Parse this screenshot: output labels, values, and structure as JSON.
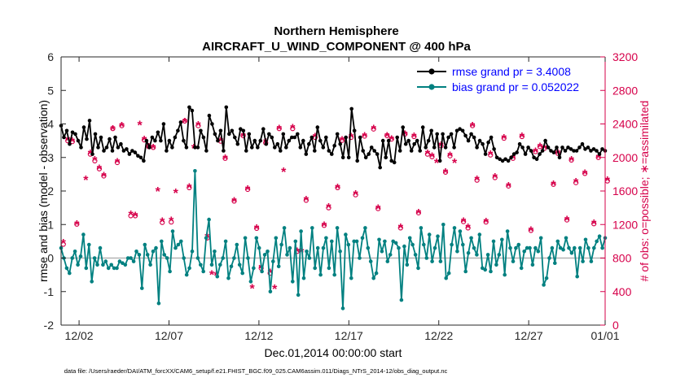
{
  "chart_data": {
    "type": "line",
    "title": "Northern Hemisphere",
    "subtitle": "AIRCRAFT_U_WIND_COMPONENT @ 400 hPa",
    "xlabel": "Dec.01,2014 00:00:00 start",
    "ylabel": "rmse and bias (model - observation)",
    "y2label": "# of obs: o=possible; ∗=assimilated",
    "footer": "data file: /Users/raeder/DAI/ATM_forcXX/CAM6_setup/f.e21.FHIST_BGC.f09_025.CAM6assim.011/Diags_NTrS_2014-12/obs_diag_output.nc",
    "xlim": [
      0,
      121
    ],
    "ylim": [
      -2,
      6
    ],
    "y2lim": [
      0,
      3200
    ],
    "x_ticks": [
      {
        "x": 4,
        "label": "12/02"
      },
      {
        "x": 24,
        "label": "12/07"
      },
      {
        "x": 44,
        "label": "12/12"
      },
      {
        "x": 64,
        "label": "12/17"
      },
      {
        "x": 84,
        "label": "12/22"
      },
      {
        "x": 104,
        "label": "12/27"
      },
      {
        "x": 124,
        "label": "01/01"
      }
    ],
    "y_ticks": [
      "-2",
      "-1",
      "0",
      "1",
      "2",
      "3",
      "4",
      "5",
      "6"
    ],
    "y2_ticks": [
      "0",
      "400",
      "800",
      "1200",
      "1600",
      "2000",
      "2400",
      "2800",
      "3200"
    ],
    "legend": {
      "position": "top-right",
      "entries": [
        "rmse grand pr = 3.4008",
        "bias grand pr = 0.052022"
      ]
    },
    "colors": {
      "rmse": "#000000",
      "bias": "#008080",
      "obs": "#d6004a",
      "zero_line": "#b4b4b4",
      "axis_right": "#d6004a"
    },
    "series": [
      {
        "name": "rmse",
        "axis": "left",
        "values": [
          3.95,
          3.6,
          3.8,
          3.4,
          3.75,
          3.7,
          3.5,
          3.3,
          3.9,
          3.55,
          4.1,
          3.1,
          3.7,
          3.3,
          3.6,
          3.2,
          3.3,
          3.55,
          3.2,
          3.6,
          3.3,
          3.4,
          3.2,
          3.25,
          3.1,
          3.2,
          3.15,
          3.05,
          3.0,
          2.9,
          3.5,
          3.3,
          3.6,
          3.5,
          3.75,
          3.5,
          4.0,
          3.2,
          3.5,
          3.3,
          3.6,
          3.8,
          4.05,
          3.5,
          3.3,
          4.5,
          4.4,
          3.3,
          3.3,
          3.8,
          3.6,
          3.2,
          4.25,
          4.0,
          3.7,
          3.5,
          3.8,
          3.2,
          4.5,
          3.7,
          3.8,
          3.6,
          3.4,
          3.85,
          3.8,
          3.2,
          3.7,
          3.3,
          3.5,
          3.3,
          3.5,
          3.85,
          3.4,
          3.7,
          3.6,
          3.3,
          3.4,
          3.2,
          3.7,
          3.3,
          3.5,
          3.6,
          3.6,
          3.7,
          3.3,
          3.5,
          3.1,
          3.4,
          3.6,
          3.2,
          3.9,
          3.5,
          3.3,
          3.6,
          3.2,
          3.1,
          3.35,
          3.7,
          3.4,
          3.0,
          3.6,
          3.0,
          4.45,
          3.8,
          2.9,
          3.6,
          3.2,
          3.0,
          3.1,
          3.3,
          3.2,
          3.1,
          2.7,
          3.5,
          3.0,
          3.5,
          2.9,
          2.85,
          3.6,
          3.2,
          3.9,
          3.4,
          3.5,
          3.2,
          3.4,
          3.5,
          3.2,
          3.9,
          3.3,
          3.5,
          3.8,
          3.3,
          3.7,
          2.9,
          3.7,
          3.3,
          3.6,
          3.7,
          3.3,
          3.8,
          3.85,
          3.8,
          3.65,
          3.5,
          3.7,
          3.6,
          3.3,
          3.5,
          3.4,
          3.1,
          3.45,
          3.6,
          3.25,
          3.0,
          2.95,
          2.9,
          2.95,
          2.9,
          3.0,
          3.1,
          3.15,
          3.4,
          3.3,
          3.1,
          3.3,
          3.2,
          3.0,
          2.95,
          3.1,
          3.2,
          3.5,
          3.3,
          3.2,
          3.15,
          3.3,
          3.0,
          3.3,
          3.2,
          3.3,
          3.25,
          3.2,
          3.2,
          3.3,
          3.4,
          3.25,
          3.3,
          3.2,
          3.25,
          3.2,
          3.1,
          3.25,
          3.2
        ]
      },
      {
        "name": "bias",
        "axis": "left",
        "values": [
          0.3,
          0.0,
          -0.3,
          -0.45,
          0.0,
          0.2,
          -0.2,
          0.05,
          0.7,
          -0.3,
          0.4,
          -0.7,
          0.0,
          -0.2,
          0.3,
          -0.2,
          -0.1,
          -0.3,
          -0.2,
          -0.3,
          -0.3,
          -0.1,
          -0.15,
          -0.2,
          0.0,
          0.0,
          -0.1,
          0.2,
          0.1,
          -0.9,
          0.4,
          0.1,
          -0.2,
          0.2,
          0.3,
          -1.35,
          0.5,
          0.1,
          0.0,
          -0.4,
          0.8,
          0.3,
          0.4,
          0.5,
          0.0,
          -0.5,
          -0.3,
          0.2,
          2.6,
          0.0,
          -0.2,
          -0.4,
          0.6,
          1.15,
          -0.2,
          0.2,
          -0.55,
          -0.2,
          0.0,
          0.5,
          -0.6,
          -0.25,
          0.0,
          0.4,
          -0.2,
          -0.45,
          0.6,
          0.0,
          -0.7,
          -0.3,
          0.6,
          0.3,
          -0.4,
          0.1,
          0.2,
          -1.0,
          -0.1,
          0.6,
          -0.25,
          0.4,
          0.9,
          0.1,
          0.3,
          -0.7,
          0.5,
          -1.1,
          0.8,
          -0.6,
          0.2,
          0.0,
          0.9,
          -0.3,
          0.3,
          -0.5,
          0.3,
          0.6,
          -0.3,
          0.5,
          -0.5,
          0.9,
          0.2,
          -1.5,
          0.7,
          0.4,
          -0.6,
          0.5,
          0.5,
          0.0,
          0.6,
          0.9,
          0.3,
          -0.1,
          -0.6,
          -0.45,
          0.55,
          0.2,
          0.5,
          -0.1,
          0.1,
          0.5,
          0.45,
          0.3,
          -1.25,
          0.35,
          -0.2,
          0.6,
          0.4,
          0.1,
          -0.3,
          0.9,
          0.4,
          0.0,
          0.7,
          -0.1,
          0.3,
          0.65,
          -0.1,
          1.0,
          -0.6,
          -0.45,
          0.4,
          0.9,
          0.2,
          0.8,
          0.4,
          -0.4,
          0.15,
          0.6,
          0.3,
          0.1,
          0.7,
          -0.3,
          -0.35,
          0.1,
          -0.4,
          0.5,
          -0.2,
          0.1,
          0.55,
          -0.5,
          0.8,
          0.3,
          -0.1,
          0.3,
          0.4,
          -0.3,
          0.2,
          0.3,
          0.3,
          -0.2,
          0.3,
          0.2,
          0.6,
          -0.8,
          -0.6,
          0.0,
          0.3,
          -0.15,
          0.5,
          0.3,
          0.25,
          0.6,
          0.3,
          0.15,
          0.3,
          -0.55,
          0.3,
          -0.1,
          0.55,
          0.3,
          -0.1,
          0.3,
          0.5,
          0.65,
          0.3,
          0.6
        ]
      },
      {
        "name": "obs_possible",
        "axis": "right",
        "marker": "o",
        "points": [
          [
            0.5,
            965
          ],
          [
            1.5,
            2200
          ],
          [
            2.5,
            2190
          ],
          [
            3.5,
            1205
          ],
          [
            6.5,
            2040
          ],
          [
            7.5,
            1960
          ],
          [
            8.5,
            1865
          ],
          [
            9.5,
            1780
          ],
          [
            11.5,
            2345
          ],
          [
            12.5,
            1940
          ],
          [
            13.5,
            2380
          ],
          [
            15.5,
            1305
          ],
          [
            16.5,
            1305
          ],
          [
            18.5,
            2210
          ],
          [
            19.5,
            2130
          ],
          [
            20.5,
            2120
          ],
          [
            22.5,
            1225
          ],
          [
            24.5,
            1230
          ],
          [
            27.5,
            2435
          ],
          [
            28.5,
            1640
          ],
          [
            30.5,
            2380
          ],
          [
            32.5,
            1040
          ],
          [
            35.5,
            2195
          ],
          [
            36.5,
            1990
          ],
          [
            38.5,
            1480
          ],
          [
            40.5,
            2260
          ],
          [
            41.5,
            1620
          ],
          [
            43.5,
            1155
          ],
          [
            44.5,
            680
          ],
          [
            45.5,
            2175
          ],
          [
            46.5,
            620
          ],
          [
            48.5,
            2345
          ],
          [
            51.5,
            2345
          ],
          [
            52.5,
            880
          ],
          [
            54.5,
            1490
          ],
          [
            56.5,
            2240
          ],
          [
            58.5,
            1190
          ],
          [
            59.5,
            1400
          ],
          [
            61.5,
            1640
          ],
          [
            62.5,
            2205
          ],
          [
            64.5,
            2240
          ],
          [
            65.5,
            1555
          ],
          [
            67.5,
            2255
          ],
          [
            69.5,
            2340
          ],
          [
            70.5,
            1390
          ],
          [
            72.5,
            2260
          ],
          [
            73.5,
            2220
          ],
          [
            75.5,
            1160
          ],
          [
            76.5,
            2280
          ],
          [
            78.5,
            2250
          ],
          [
            79.5,
            1340
          ],
          [
            81.5,
            2040
          ],
          [
            82.5,
            2010
          ],
          [
            84.5,
            2140
          ],
          [
            85.5,
            1825
          ],
          [
            86.5,
            2020
          ],
          [
            89.5,
            1235
          ],
          [
            90.5,
            1160
          ],
          [
            91.5,
            2380
          ],
          [
            92.5,
            1730
          ],
          [
            94.5,
            1230
          ],
          [
            95.5,
            2030
          ],
          [
            96.5,
            1760
          ],
          [
            98.5,
            2230
          ],
          [
            99.5,
            1660
          ],
          [
            100.5,
            1990
          ],
          [
            102.5,
            2250
          ],
          [
            104.5,
            1130
          ],
          [
            105.5,
            2070
          ],
          [
            106.5,
            2130
          ],
          [
            107.5,
            2110
          ],
          [
            109.5,
            1680
          ],
          [
            110.5,
            2050
          ],
          [
            112.5,
            1255
          ],
          [
            113.5,
            1970
          ],
          [
            114.5,
            1700
          ],
          [
            116.5,
            1810
          ],
          [
            118.5,
            1210
          ],
          [
            119.5,
            2000
          ],
          [
            121.5,
            1720
          ]
        ]
      },
      {
        "name": "obs_assimilated",
        "axis": "right",
        "marker": "*",
        "points": [
          [
            0.5,
            975
          ],
          [
            1.5,
            2200
          ],
          [
            2.5,
            2185
          ],
          [
            3.5,
            1200
          ],
          [
            5.5,
            1730
          ],
          [
            6.5,
            2040
          ],
          [
            7.5,
            1965
          ],
          [
            8.5,
            1860
          ],
          [
            9.5,
            1775
          ],
          [
            11.5,
            2330
          ],
          [
            12.5,
            1940
          ],
          [
            13.5,
            2370
          ],
          [
            15.5,
            1315
          ],
          [
            16.5,
            1300
          ],
          [
            17.5,
            2385
          ],
          [
            18.5,
            2205
          ],
          [
            19.5,
            2120
          ],
          [
            20.5,
            2110
          ],
          [
            21.5,
            1595
          ],
          [
            22.5,
            1230
          ],
          [
            24.5,
            1240
          ],
          [
            25.5,
            1575
          ],
          [
            27.5,
            2420
          ],
          [
            28.5,
            1640
          ],
          [
            29.5,
            2110
          ],
          [
            30.5,
            2380
          ],
          [
            32.5,
            1045
          ],
          [
            33.5,
            600
          ],
          [
            34.5,
            590
          ],
          [
            35.5,
            2190
          ],
          [
            36.5,
            1985
          ],
          [
            38.5,
            1475
          ],
          [
            40.5,
            2250
          ],
          [
            41.5,
            1615
          ],
          [
            42.5,
            435
          ],
          [
            43.5,
            1150
          ],
          [
            44.5,
            680
          ],
          [
            45.5,
            2175
          ],
          [
            46.5,
            620
          ],
          [
            47.5,
            430
          ],
          [
            48.5,
            2335
          ],
          [
            49.5,
            1830
          ],
          [
            51.5,
            2345
          ],
          [
            52.5,
            875
          ],
          [
            53.5,
            870
          ],
          [
            54.5,
            1490
          ],
          [
            56.5,
            2240
          ],
          [
            58.5,
            1185
          ],
          [
            59.5,
            1400
          ],
          [
            61.5,
            1635
          ],
          [
            62.5,
            2200
          ],
          [
            64.5,
            2240
          ],
          [
            65.5,
            1555
          ],
          [
            67.5,
            2250
          ],
          [
            69.5,
            2335
          ],
          [
            70.5,
            1385
          ],
          [
            72.5,
            2250
          ],
          [
            73.5,
            2210
          ],
          [
            75.5,
            1160
          ],
          [
            76.5,
            2270
          ],
          [
            78.5,
            2245
          ],
          [
            79.5,
            1335
          ],
          [
            81.5,
            2040
          ],
          [
            82.5,
            2005
          ],
          [
            83.5,
            1935
          ],
          [
            84.5,
            2140
          ],
          [
            85.5,
            1820
          ],
          [
            86.5,
            2015
          ],
          [
            87.5,
            1935
          ],
          [
            89.5,
            1230
          ],
          [
            90.5,
            1160
          ],
          [
            91.5,
            2370
          ],
          [
            92.5,
            1730
          ],
          [
            94.5,
            1225
          ],
          [
            95.5,
            2030
          ],
          [
            96.5,
            1760
          ],
          [
            98.5,
            2225
          ],
          [
            99.5,
            1655
          ],
          [
            100.5,
            1990
          ],
          [
            102.5,
            2245
          ],
          [
            104.5,
            1125
          ],
          [
            105.5,
            2065
          ],
          [
            106.5,
            2125
          ],
          [
            107.5,
            2105
          ],
          [
            109.5,
            1675
          ],
          [
            110.5,
            2045
          ],
          [
            112.5,
            1250
          ],
          [
            113.5,
            1965
          ],
          [
            114.5,
            1700
          ],
          [
            116.5,
            1805
          ],
          [
            118.5,
            1205
          ],
          [
            119.5,
            1995
          ],
          [
            121.5,
            1720
          ]
        ]
      }
    ]
  }
}
